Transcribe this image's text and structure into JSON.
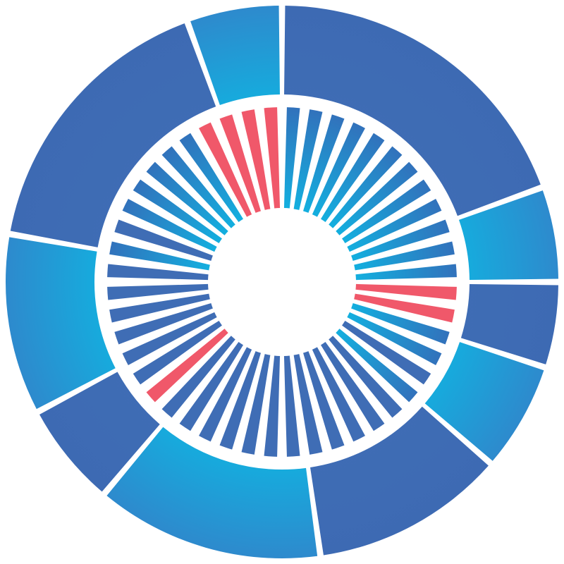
{
  "logo": {
    "colors": {
      "dark_blue": "#3f6db5",
      "cyan": "#12b1e0",
      "mid_blue": "#2a8fcf",
      "red": "#f0586a",
      "background": "#ffffff"
    },
    "outer_ring_segments": [
      "dark_blue",
      "cyan",
      "dark_blue",
      "cyan",
      "dark_blue",
      "cyan",
      "dark_blue",
      "cyan",
      "dark_blue",
      "cyan"
    ],
    "spoke_count": 48,
    "red_spokes": [
      12,
      13,
      30,
      44,
      45,
      46,
      47
    ]
  }
}
